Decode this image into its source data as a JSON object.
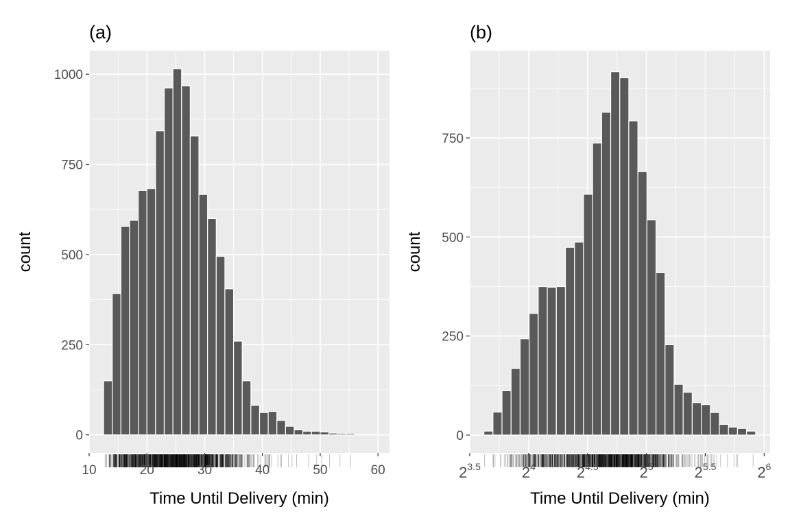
{
  "chart_data": [
    {
      "type": "bar",
      "panel_tag": "(a)",
      "xlabel": "Time Until Delivery (min)",
      "ylabel": "count",
      "x_scale": "linear",
      "xlim": [
        10,
        62
      ],
      "ylim": [
        -50,
        1065
      ],
      "x_ticks": [
        10,
        20,
        30,
        40,
        50,
        60
      ],
      "y_ticks": [
        0,
        250,
        500,
        750,
        1000
      ],
      "bin_start": 12.5,
      "bin_width": 1.5,
      "counts": [
        150,
        392,
        578,
        595,
        678,
        683,
        843,
        962,
        1015,
        968,
        829,
        667,
        600,
        495,
        405,
        260,
        150,
        82,
        62,
        65,
        40,
        24,
        14,
        10,
        10,
        8,
        5,
        4,
        4
      ],
      "rug": "dense vertical ticks along the bottom (one per observation)",
      "grid": true
    },
    {
      "type": "bar",
      "panel_tag": "(b)",
      "xlabel": "Time Until Delivery (min)",
      "ylabel": "count",
      "x_scale": "log2",
      "xlim": [
        3.5,
        6.05
      ],
      "ylim": [
        -45,
        970
      ],
      "x_ticks": [
        {
          "base": "2",
          "exp": "3.5",
          "value": 3.5
        },
        {
          "base": "2",
          "exp": "4",
          "value": 4
        },
        {
          "base": "2",
          "exp": "4.5",
          "value": 4.5
        },
        {
          "base": "2",
          "exp": "5",
          "value": 5
        },
        {
          "base": "2",
          "exp": "5.5",
          "value": 5.5
        },
        {
          "base": "2",
          "exp": "6",
          "value": 6
        }
      ],
      "y_ticks": [
        0,
        250,
        500,
        750
      ],
      "bin_start": 3.62,
      "bin_width": 0.0769,
      "counts": [
        10,
        58,
        112,
        168,
        243,
        307,
        375,
        373,
        375,
        474,
        487,
        608,
        737,
        815,
        917,
        902,
        793,
        665,
        543,
        410,
        228,
        128,
        108,
        82,
        77,
        57,
        27,
        20,
        17,
        10
      ],
      "rug": "dense vertical ticks along the bottom (one per observation)",
      "grid": true
    }
  ]
}
